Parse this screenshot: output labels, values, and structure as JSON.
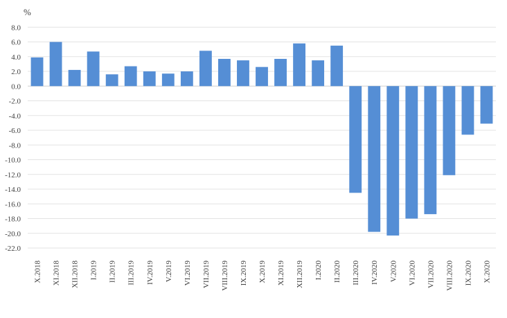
{
  "chart_data": {
    "type": "bar",
    "title": "",
    "ylabel": "%",
    "xlabel": "",
    "ylim": [
      -22,
      8
    ],
    "yticks": [
      8,
      6,
      4,
      2,
      0,
      -2,
      -4,
      -6,
      -8,
      -10,
      -12,
      -14,
      -16,
      -18,
      -20,
      -22
    ],
    "ytick_labels": [
      "8.0",
      "6.0",
      "4.0",
      "2.0",
      "0.0",
      "-2.0",
      "-4.0",
      "-6.0",
      "-8.0",
      "-10.0",
      "-12.0",
      "-14.0",
      "-16.0",
      "-18.0",
      "-20.0",
      "-22.0"
    ],
    "grid": true,
    "bar_color": "#558ed5",
    "categories": [
      "X.2018",
      "XI.2018",
      "XII.2018",
      "I.2019",
      "II.2019",
      "III.2019",
      "IV.2019",
      "V.2019",
      "VI.2019",
      "VII.2019",
      "VIII.2019",
      "IX.2019",
      "X.2019",
      "XI.2019",
      "XII.2019",
      "I.2020",
      "II.2020",
      "III.2020",
      "IV.2020",
      "V.2020",
      "VI.2020",
      "VII.2020",
      "VIII.2020",
      "IX.2020",
      "X.2020"
    ],
    "values": [
      3.9,
      6.0,
      2.2,
      4.7,
      1.6,
      2.7,
      2.0,
      1.7,
      2.0,
      4.8,
      3.7,
      3.5,
      2.6,
      3.7,
      5.8,
      3.5,
      5.5,
      -14.5,
      -19.8,
      -20.3,
      -18.0,
      -17.4,
      -12.1,
      -6.6,
      -5.1
    ]
  }
}
